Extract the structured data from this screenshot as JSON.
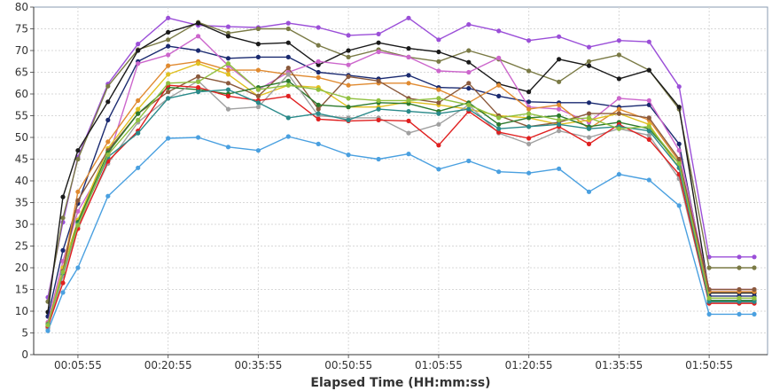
{
  "chart_data": {
    "type": "line",
    "title": "",
    "xlabel": "Elapsed Time (HH:mm:ss)",
    "ylabel": "",
    "grid": true,
    "legend": "none",
    "ylim": [
      0,
      80
    ],
    "yticks": [
      0,
      5,
      10,
      15,
      20,
      25,
      30,
      35,
      40,
      45,
      50,
      55,
      60,
      65,
      70,
      75,
      80
    ],
    "x": [
      "00:00:55",
      "00:03:25",
      "00:05:55",
      "00:10:55",
      "00:15:55",
      "00:20:55",
      "00:25:55",
      "00:30:55",
      "00:35:55",
      "00:40:55",
      "00:45:55",
      "00:50:55",
      "00:55:55",
      "01:00:55",
      "01:05:55",
      "01:10:55",
      "01:15:55",
      "01:20:55",
      "01:25:55",
      "01:30:55",
      "01:35:55",
      "01:40:55",
      "01:45:55",
      "01:50:55",
      "01:55:55",
      "01:58:25"
    ],
    "x_ticks_shown": [
      "00:05:55",
      "00:20:55",
      "00:35:55",
      "00:50:55",
      "01:05:55",
      "01:20:55",
      "01:35:55",
      "01:50:55"
    ],
    "series": [
      {
        "color": "#9b4fd8",
        "values": [
          13.2,
          30.5,
          45.5,
          62.3,
          71.5,
          77.5,
          75.8,
          75.5,
          75.3,
          76.3,
          75.3,
          73.5,
          73.8,
          77.5,
          72.5,
          76.0,
          74.5,
          72.3,
          73.2,
          70.8,
          72.3,
          72.0,
          61.7,
          22.5,
          22.5,
          22.5
        ]
      },
      {
        "color": "#7a7a45",
        "values": [
          12.2,
          31.5,
          45.0,
          61.8,
          70.2,
          72.5,
          76.5,
          74.0,
          75.0,
          75.0,
          71.2,
          68.5,
          70.2,
          68.5,
          67.5,
          70.0,
          68.0,
          65.3,
          62.8,
          67.5,
          69.0,
          65.5,
          56.5,
          20.0,
          20.0,
          20.0
        ]
      },
      {
        "color": "#1a1a1a",
        "values": [
          9.8,
          36.3,
          47.0,
          58.2,
          70.0,
          74.2,
          76.3,
          73.3,
          71.5,
          71.8,
          66.7,
          70.0,
          71.8,
          70.5,
          69.7,
          67.3,
          62.3,
          60.5,
          68.0,
          66.5,
          63.5,
          65.5,
          57.0,
          14.2,
          14.2,
          14.2
        ]
      },
      {
        "color": "#1a2a70",
        "values": [
          8.8,
          24.0,
          34.8,
          54.0,
          67.5,
          71.0,
          70.0,
          68.2,
          68.5,
          68.5,
          65.0,
          64.3,
          63.5,
          64.3,
          61.5,
          61.3,
          59.5,
          58.2,
          58.0,
          58.0,
          57.0,
          57.5,
          48.5,
          13.5,
          13.5,
          13.5
        ]
      },
      {
        "color": "#cc66cc",
        "values": [
          7.5,
          21.5,
          33.0,
          45.0,
          67.0,
          69.0,
          73.3,
          66.5,
          61.0,
          65.0,
          67.5,
          66.7,
          69.7,
          68.5,
          65.3,
          65.0,
          68.3,
          57.0,
          56.5,
          53.5,
          59.0,
          58.5,
          47.0,
          15.0,
          15.0,
          15.0
        ]
      },
      {
        "color": "#e08a30",
        "values": [
          7.2,
          19.5,
          37.5,
          49.0,
          58.5,
          66.5,
          67.5,
          65.5,
          65.5,
          64.5,
          63.8,
          62.0,
          62.5,
          62.5,
          61.0,
          58.0,
          62.0,
          56.5,
          57.5,
          52.0,
          56.5,
          54.0,
          44.5,
          14.5,
          14.5,
          14.5
        ]
      },
      {
        "color": "#e0c020",
        "values": [
          6.8,
          20.0,
          31.0,
          47.5,
          56.5,
          64.5,
          67.0,
          64.5,
          59.5,
          62.0,
          61.5,
          57.0,
          57.0,
          58.2,
          57.5,
          56.5,
          55.0,
          54.5,
          53.0,
          54.0,
          55.5,
          53.0,
          43.0,
          13.0,
          13.0,
          13.0
        ]
      },
      {
        "color": "#8b5a3c",
        "values": [
          6.5,
          19.2,
          35.5,
          47.0,
          55.5,
          60.5,
          64.0,
          62.5,
          59.5,
          66.0,
          56.5,
          64.0,
          63.0,
          59.0,
          58.0,
          62.5,
          55.0,
          52.5,
          53.5,
          55.5,
          55.5,
          54.5,
          45.0,
          15.0,
          15.0,
          15.0
        ]
      },
      {
        "color": "#2d7a2d",
        "values": [
          6.2,
          18.5,
          30.5,
          46.5,
          55.5,
          61.5,
          61.0,
          60.0,
          61.5,
          63.0,
          57.5,
          57.0,
          58.0,
          57.8,
          56.0,
          58.0,
          53.0,
          54.5,
          55.0,
          52.5,
          53.5,
          52.0,
          44.0,
          12.5,
          12.5,
          12.5
        ]
      },
      {
        "color": "#a0a0a0",
        "values": [
          6.0,
          18.0,
          29.5,
          44.0,
          53.5,
          59.0,
          63.0,
          56.5,
          57.0,
          64.5,
          55.0,
          54.5,
          54.5,
          51.0,
          53.0,
          57.5,
          51.0,
          48.5,
          51.5,
          50.0,
          52.0,
          50.5,
          40.5,
          12.0,
          12.0,
          12.0
        ]
      },
      {
        "color": "#e02020",
        "values": [
          6.5,
          16.5,
          29.0,
          44.5,
          51.5,
          62.0,
          61.5,
          59.5,
          58.5,
          59.5,
          54.2,
          53.8,
          54.0,
          53.8,
          48.2,
          56.0,
          51.2,
          49.8,
          52.5,
          48.5,
          53.0,
          49.5,
          41.5,
          11.8,
          11.8,
          11.8
        ]
      },
      {
        "color": "#4aa0e0",
        "values": [
          5.5,
          14.3,
          20.0,
          36.5,
          43.0,
          49.8,
          50.0,
          47.8,
          47.0,
          50.2,
          48.5,
          46.0,
          45.0,
          46.2,
          42.7,
          44.6,
          42.1,
          41.8,
          42.8,
          37.5,
          41.5,
          40.2,
          34.3,
          9.3,
          9.3,
          9.3
        ]
      },
      {
        "color": "#2a8a8a",
        "values": [
          7.0,
          18.8,
          30.0,
          45.5,
          51.0,
          59.0,
          60.5,
          61.0,
          58.0,
          54.5,
          55.5,
          54.0,
          56.5,
          56.0,
          55.5,
          56.5,
          52.0,
          52.5,
          53.0,
          52.0,
          52.5,
          51.5,
          43.0,
          12.2,
          12.2,
          12.2
        ]
      },
      {
        "color": "#90c040",
        "values": [
          6.8,
          19.0,
          29.8,
          46.0,
          54.0,
          62.5,
          62.8,
          67.0,
          61.0,
          62.0,
          61.0,
          59.0,
          58.5,
          58.5,
          59.0,
          57.5,
          54.5,
          55.5,
          54.0,
          54.5,
          52.0,
          52.5,
          44.0,
          13.0,
          13.0,
          13.0
        ]
      }
    ]
  }
}
